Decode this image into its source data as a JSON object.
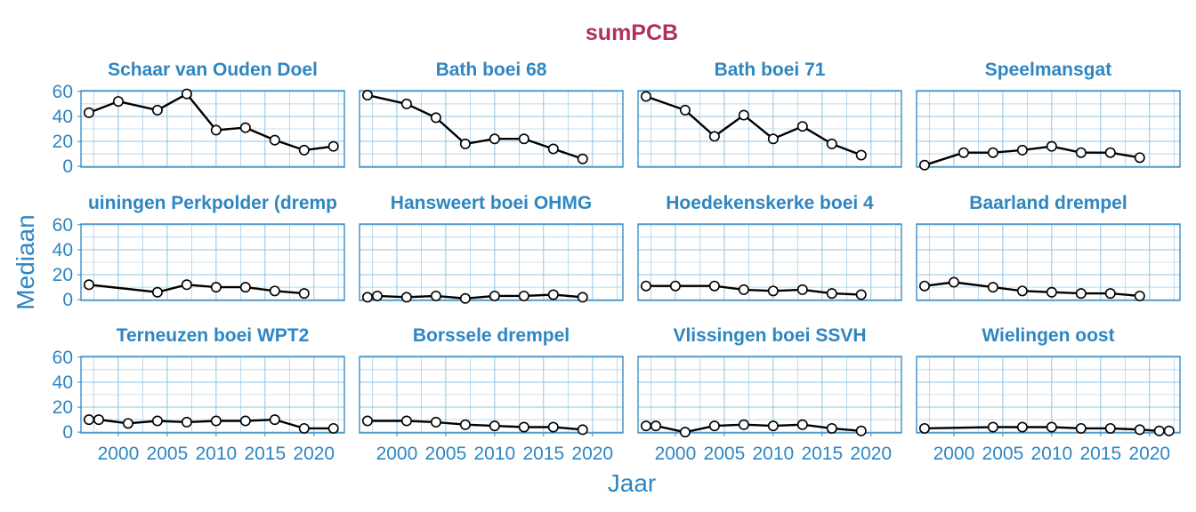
{
  "colors": {
    "accent": "#2e86c1",
    "grid": "#8fc3e4",
    "title": "#b03060",
    "line": "#000000",
    "point_fill": "#ffffff"
  },
  "chart_data": {
    "type": "line",
    "title": "sumPCB",
    "xlabel": "Jaar",
    "ylabel": "Mediaan",
    "xlim": [
      1996.5,
      2022.8
    ],
    "ylim": [
      0,
      60
    ],
    "x_ticks": [
      2000,
      2005,
      2010,
      2015,
      2020
    ],
    "y_ticks": [
      0,
      20,
      40,
      60
    ],
    "grid": true,
    "layout": "3x4 facets",
    "panels": [
      {
        "name": "Schaar van Ouden Doel",
        "x": [
          1997,
          2000,
          2004,
          2007,
          2010,
          2013,
          2016,
          2019,
          2022
        ],
        "y": [
          43,
          52,
          45,
          58,
          29,
          31,
          21,
          13,
          16
        ]
      },
      {
        "name": "Bath boei 68",
        "x": [
          1997,
          2001,
          2004,
          2007,
          2010,
          2013,
          2016,
          2019
        ],
        "y": [
          57,
          50,
          39,
          18,
          22,
          22,
          14,
          6
        ]
      },
      {
        "name": "Bath boei 71",
        "x": [
          1997,
          2001,
          2004,
          2007,
          2010,
          2013,
          2016,
          2019
        ],
        "y": [
          56,
          45,
          24,
          41,
          22,
          32,
          18,
          9
        ]
      },
      {
        "name": "Speelmansgat",
        "x": [
          1997,
          2001,
          2004,
          2007,
          2010,
          2013,
          2016,
          2019
        ],
        "y": [
          1,
          11,
          11,
          13,
          16,
          11,
          11,
          7
        ]
      },
      {
        "name": "uiningen Perkpolder (dremp",
        "x": [
          1997,
          2004,
          2007,
          2010,
          2013,
          2016,
          2019
        ],
        "y": [
          12,
          6,
          12,
          10,
          10,
          7,
          5
        ]
      },
      {
        "name": "Hansweert boei OHMG",
        "x": [
          1997,
          1998,
          2001,
          2004,
          2007,
          2010,
          2013,
          2016,
          2019
        ],
        "y": [
          2,
          3,
          2,
          3,
          1,
          3,
          3,
          4,
          2
        ]
      },
      {
        "name": "Hoedekenskerke boei 4",
        "x": [
          1997,
          2000,
          2004,
          2007,
          2010,
          2013,
          2016,
          2019
        ],
        "y": [
          11,
          11,
          11,
          8,
          7,
          8,
          5,
          4
        ]
      },
      {
        "name": "Baarland drempel",
        "x": [
          1997,
          2000,
          2004,
          2007,
          2010,
          2013,
          2016,
          2019
        ],
        "y": [
          11,
          14,
          10,
          7,
          6,
          5,
          5,
          3
        ]
      },
      {
        "name": "Terneuzen boei WPT2",
        "x": [
          1997,
          1998,
          2001,
          2004,
          2007,
          2010,
          2013,
          2016,
          2019,
          2022
        ],
        "y": [
          10,
          10,
          7,
          9,
          8,
          9,
          9,
          10,
          3,
          3
        ]
      },
      {
        "name": "Borssele drempel",
        "x": [
          1997,
          2001,
          2004,
          2007,
          2010,
          2013,
          2016,
          2019
        ],
        "y": [
          9,
          9,
          8,
          6,
          5,
          4,
          4,
          2
        ]
      },
      {
        "name": "Vlissingen boei SSVH",
        "x": [
          1997,
          1998,
          2001,
          2004,
          2007,
          2010,
          2013,
          2016,
          2019
        ],
        "y": [
          5,
          5,
          0,
          5,
          6,
          5,
          6,
          3,
          1
        ]
      },
      {
        "name": "Wielingen oost",
        "x": [
          1997,
          2004,
          2007,
          2010,
          2013,
          2016,
          2019,
          2021,
          2022
        ],
        "y": [
          3,
          4,
          4,
          4,
          3,
          3,
          2,
          1,
          1
        ]
      }
    ]
  }
}
